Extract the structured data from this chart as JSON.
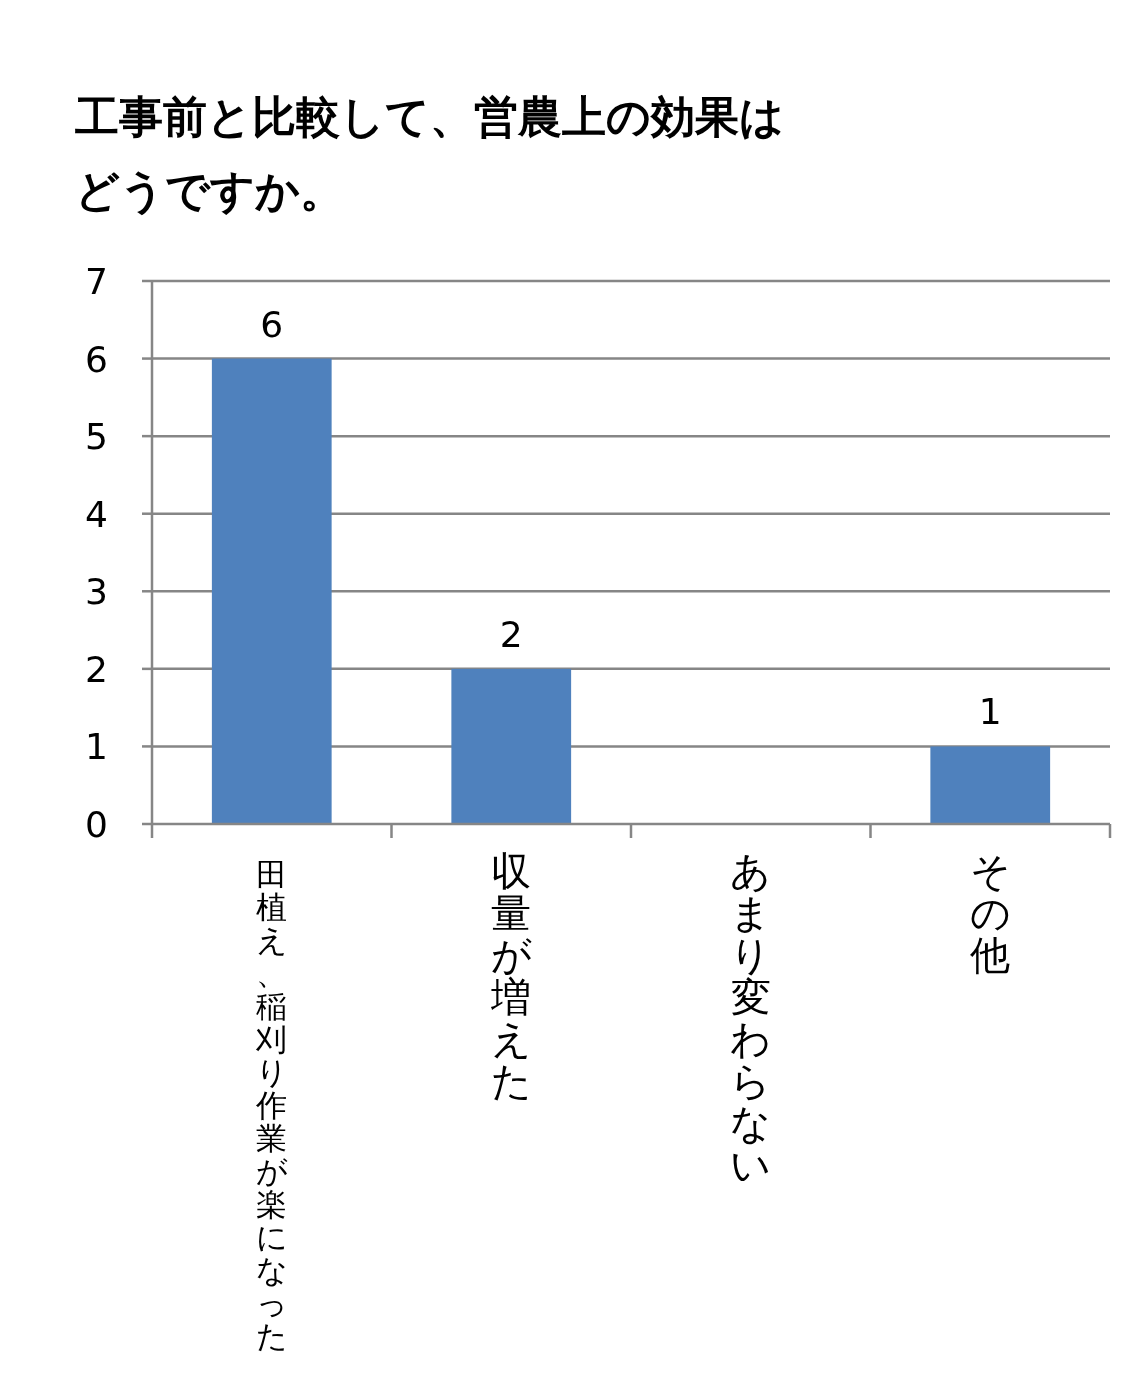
{
  "chart_data": {
    "type": "bar",
    "title": "工事前と比較して、営農上の効果はどうですか。",
    "categories": [
      "田植え、稲刈り作業が楽になった",
      "収量が増えた",
      "あまり変わらない",
      "その他"
    ],
    "values": [
      6,
      2,
      0,
      1
    ],
    "value_labels": [
      "6",
      "2",
      null,
      "1"
    ],
    "color": "#4f81bd",
    "ylim": [
      0,
      7
    ],
    "yticks": [
      0,
      1,
      2,
      3,
      4,
      5,
      6,
      7
    ],
    "grid": "y",
    "legend": false
  }
}
